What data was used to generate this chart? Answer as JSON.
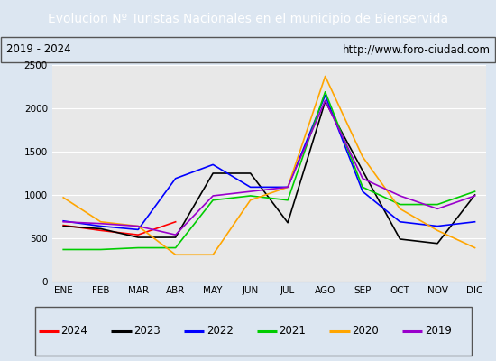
{
  "title": "Evolucion Nº Turistas Nacionales en el municipio de Bienservida",
  "subtitle_left": "2019 - 2024",
  "subtitle_right": "http://www.foro-ciudad.com",
  "months": [
    "ENE",
    "FEB",
    "MAR",
    "ABR",
    "MAY",
    "JUN",
    "JUL",
    "AGO",
    "SEP",
    "OCT",
    "NOV",
    "DIC"
  ],
  "ylim": [
    0,
    2500
  ],
  "yticks": [
    0,
    500,
    1000,
    1500,
    2000,
    2500
  ],
  "series": {
    "2024": {
      "color": "#ff0000",
      "values": [
        650,
        590,
        540,
        690,
        null,
        null,
        null,
        null,
        null,
        null,
        null,
        null
      ]
    },
    "2023": {
      "color": "#000000",
      "values": [
        640,
        610,
        510,
        510,
        1250,
        1250,
        680,
        2080,
        1280,
        490,
        440,
        1000
      ]
    },
    "2022": {
      "color": "#0000ff",
      "values": [
        700,
        640,
        600,
        1190,
        1350,
        1090,
        1090,
        2150,
        1040,
        690,
        640,
        690
      ]
    },
    "2021": {
      "color": "#00cc00",
      "values": [
        370,
        370,
        390,
        390,
        940,
        990,
        940,
        2190,
        1090,
        890,
        890,
        1040
      ]
    },
    "2020": {
      "color": "#ffa500",
      "values": [
        970,
        690,
        640,
        310,
        310,
        940,
        1090,
        2370,
        1440,
        840,
        590,
        390
      ]
    },
    "2019": {
      "color": "#9900cc",
      "values": [
        690,
        670,
        640,
        540,
        990,
        1040,
        1090,
        2090,
        1190,
        990,
        840,
        990
      ]
    }
  },
  "title_fontsize": 10,
  "title_bg_color": "#5b9bd5",
  "title_text_color": "#ffffff",
  "plot_bg_color": "#e8e8e8",
  "fig_bg_color": "#dce6f1",
  "legend_order": [
    "2024",
    "2023",
    "2022",
    "2021",
    "2020",
    "2019"
  ],
  "figsize": [
    5.5,
    4.0
  ],
  "dpi": 100
}
